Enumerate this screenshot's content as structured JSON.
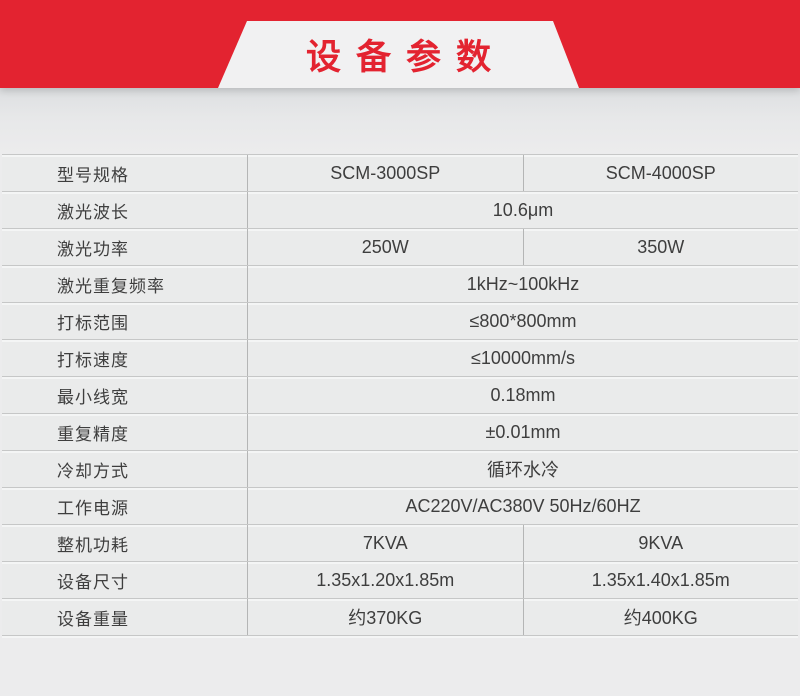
{
  "banner": {
    "title": "设备参数"
  },
  "colors": {
    "brand_red": "#e32330",
    "panel_white": "#f1f1f2",
    "page_background": "#ececed",
    "table_text": "#3e3e3e"
  },
  "table": {
    "rows": [
      {
        "label": "型号规格",
        "values": [
          "SCM-3000SP",
          "SCM-4000SP"
        ]
      },
      {
        "label": "激光波长",
        "values": [
          "10.6μm"
        ]
      },
      {
        "label": "激光功率",
        "values": [
          "250W",
          "350W"
        ]
      },
      {
        "label": "激光重复频率",
        "values": [
          "1kHz~100kHz"
        ]
      },
      {
        "label": "打标范围",
        "values": [
          "≤800*800mm"
        ]
      },
      {
        "label": "打标速度",
        "values": [
          "≤10000mm/s"
        ]
      },
      {
        "label": "最小线宽",
        "values": [
          "0.18mm"
        ]
      },
      {
        "label": "重复精度",
        "values": [
          "±0.01mm"
        ]
      },
      {
        "label": "冷却方式",
        "values": [
          "循环水冷"
        ]
      },
      {
        "label": "工作电源",
        "values": [
          "AC220V/AC380V 50Hz/60HZ"
        ]
      },
      {
        "label": "整机功耗",
        "values": [
          "7KVA",
          "9KVA"
        ]
      },
      {
        "label": "设备尺寸",
        "values": [
          "1.35x1.20x1.85m",
          "1.35x1.40x1.85m"
        ]
      },
      {
        "label": "设备重量",
        "values": [
          "约370KG",
          "约400KG"
        ]
      }
    ]
  }
}
